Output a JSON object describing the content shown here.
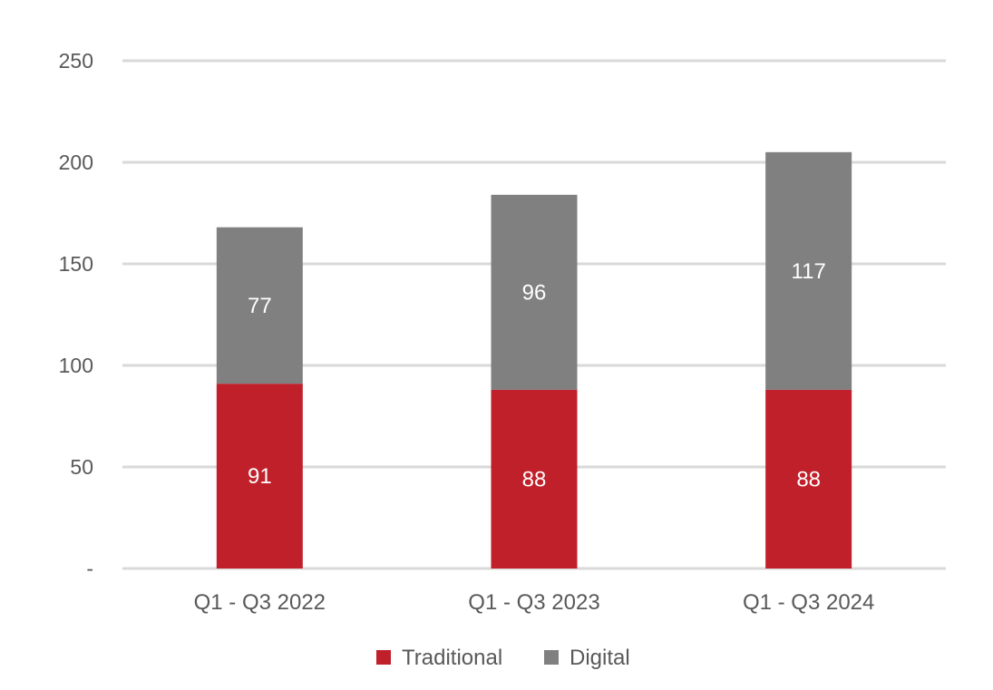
{
  "chart_data": {
    "type": "bar",
    "stacked": true,
    "title": "",
    "xlabel": "",
    "ylabel": "",
    "categories": [
      "Q1 - Q3 2022",
      "Q1 - Q3 2023",
      "Q1 - Q3 2024"
    ],
    "series": [
      {
        "name": "Traditional",
        "color": "#c0202a",
        "values": [
          91,
          88,
          88
        ]
      },
      {
        "name": "Digital",
        "color": "#808080",
        "values": [
          77,
          96,
          117
        ]
      }
    ],
    "ylim": [
      0,
      250
    ],
    "yticks": [
      0,
      50,
      100,
      150,
      200,
      250
    ],
    "ytick_labels": [
      "-",
      "50",
      "100",
      "150",
      "200",
      "250"
    ],
    "grid": true,
    "legend": "bottom-center",
    "data_labels": true
  }
}
